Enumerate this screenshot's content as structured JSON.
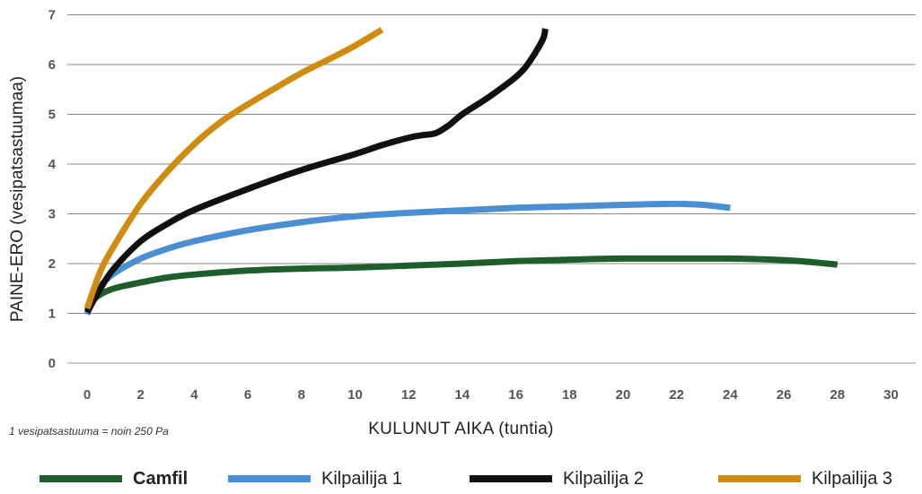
{
  "chart_data": {
    "type": "line",
    "ylabel": "PAINE-ERO (vesipatsastuumaa)",
    "xlabel": "KULUNUT AIKA (tuntia)",
    "footnote": "1 vesipatsastuuma = noin 250 Pa",
    "xlim": [
      0,
      30
    ],
    "ylim": [
      0,
      7
    ],
    "x_ticks": [
      "0",
      "2",
      "4",
      "6",
      "8",
      "10",
      "12",
      "14",
      "16",
      "18",
      "20",
      "22",
      "24",
      "26",
      "28",
      "30"
    ],
    "y_ticks": [
      "0",
      "1",
      "2",
      "3",
      "4",
      "5",
      "6",
      "7"
    ],
    "grid": "horizontal",
    "legend_position": "bottom",
    "series": [
      {
        "name": "Camfil",
        "color": "#1e5e2c",
        "bold": true,
        "points": [
          [
            0,
            1.05
          ],
          [
            0.2,
            1.25
          ],
          [
            0.5,
            1.38
          ],
          [
            1,
            1.5
          ],
          [
            2,
            1.62
          ],
          [
            3,
            1.72
          ],
          [
            4,
            1.78
          ],
          [
            6,
            1.86
          ],
          [
            8,
            1.9
          ],
          [
            10,
            1.92
          ],
          [
            12,
            1.96
          ],
          [
            14,
            2.0
          ],
          [
            16,
            2.05
          ],
          [
            18,
            2.08
          ],
          [
            20,
            2.1
          ],
          [
            22,
            2.1
          ],
          [
            24,
            2.1
          ],
          [
            26,
            2.07
          ],
          [
            27,
            2.03
          ],
          [
            28,
            1.98
          ]
        ]
      },
      {
        "name": "Kilpailija 1",
        "color": "#4a8fd4",
        "bold": false,
        "points": [
          [
            0,
            0.98
          ],
          [
            0.2,
            1.25
          ],
          [
            0.5,
            1.55
          ],
          [
            1,
            1.8
          ],
          [
            2,
            2.1
          ],
          [
            3,
            2.3
          ],
          [
            4,
            2.45
          ],
          [
            6,
            2.67
          ],
          [
            8,
            2.83
          ],
          [
            10,
            2.95
          ],
          [
            12,
            3.02
          ],
          [
            14,
            3.07
          ],
          [
            16,
            3.12
          ],
          [
            18,
            3.15
          ],
          [
            20,
            3.18
          ],
          [
            22,
            3.2
          ],
          [
            23,
            3.18
          ],
          [
            24,
            3.12
          ]
        ]
      },
      {
        "name": "Kilpailija 2",
        "color": "#111111",
        "bold": false,
        "points": [
          [
            0,
            1.02
          ],
          [
            0.5,
            1.5
          ],
          [
            1,
            1.9
          ],
          [
            2,
            2.45
          ],
          [
            3,
            2.8
          ],
          [
            4,
            3.08
          ],
          [
            6,
            3.5
          ],
          [
            8,
            3.88
          ],
          [
            10,
            4.2
          ],
          [
            11,
            4.38
          ],
          [
            12,
            4.53
          ],
          [
            12.5,
            4.58
          ],
          [
            13,
            4.62
          ],
          [
            13.5,
            4.78
          ],
          [
            14,
            5.0
          ],
          [
            15,
            5.35
          ],
          [
            16,
            5.75
          ],
          [
            16.5,
            6.05
          ],
          [
            17,
            6.5
          ],
          [
            17.1,
            6.72
          ]
        ]
      },
      {
        "name": "Kilpailija 3",
        "color": "#d08c10",
        "bold": false,
        "points": [
          [
            0,
            1.1
          ],
          [
            0.5,
            1.85
          ],
          [
            1,
            2.35
          ],
          [
            2,
            3.2
          ],
          [
            3,
            3.85
          ],
          [
            4,
            4.4
          ],
          [
            5,
            4.85
          ],
          [
            6,
            5.2
          ],
          [
            7,
            5.52
          ],
          [
            8,
            5.83
          ],
          [
            9,
            6.1
          ],
          [
            10,
            6.38
          ],
          [
            11,
            6.7
          ]
        ]
      }
    ]
  }
}
